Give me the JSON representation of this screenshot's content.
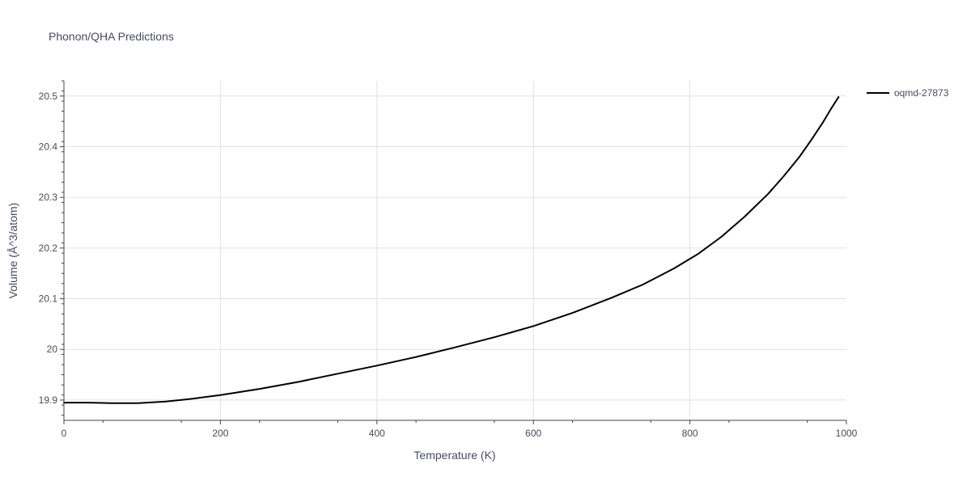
{
  "chart_data": {
    "type": "line",
    "title": "Phonon/QHA Predictions",
    "xlabel": "Temperature (K)",
    "ylabel": "Volume (Å^3/atom)",
    "xlim": [
      0,
      1000
    ],
    "ylim": [
      19.86,
      20.53
    ],
    "x_ticks": [
      0,
      200,
      400,
      600,
      800,
      1000
    ],
    "x_tick_labels": [
      "0",
      "200",
      "400",
      "600",
      "800",
      "1000"
    ],
    "y_ticks": [
      19.9,
      20.0,
      20.1,
      20.2,
      20.3,
      20.4,
      20.5
    ],
    "y_tick_labels": [
      "19.9",
      "20",
      "20.1",
      "20.2",
      "20.3",
      "20.4",
      "20.5"
    ],
    "grid": true,
    "legend_position": "top-right",
    "series": [
      {
        "name": "oqmd-27873",
        "color": "#000000",
        "x": [
          0,
          30,
          60,
          95,
          130,
          160,
          200,
          250,
          300,
          350,
          400,
          450,
          500,
          550,
          600,
          650,
          700,
          740,
          780,
          810,
          840,
          870,
          900,
          920,
          940,
          955,
          970,
          980,
          990
        ],
        "y": [
          19.895,
          19.895,
          19.894,
          19.894,
          19.897,
          19.902,
          19.91,
          19.922,
          19.936,
          19.952,
          19.968,
          19.985,
          20.004,
          20.024,
          20.046,
          20.072,
          20.102,
          20.128,
          20.16,
          20.188,
          20.222,
          20.262,
          20.307,
          20.342,
          20.38,
          20.413,
          20.448,
          20.474,
          20.498
        ]
      }
    ]
  }
}
